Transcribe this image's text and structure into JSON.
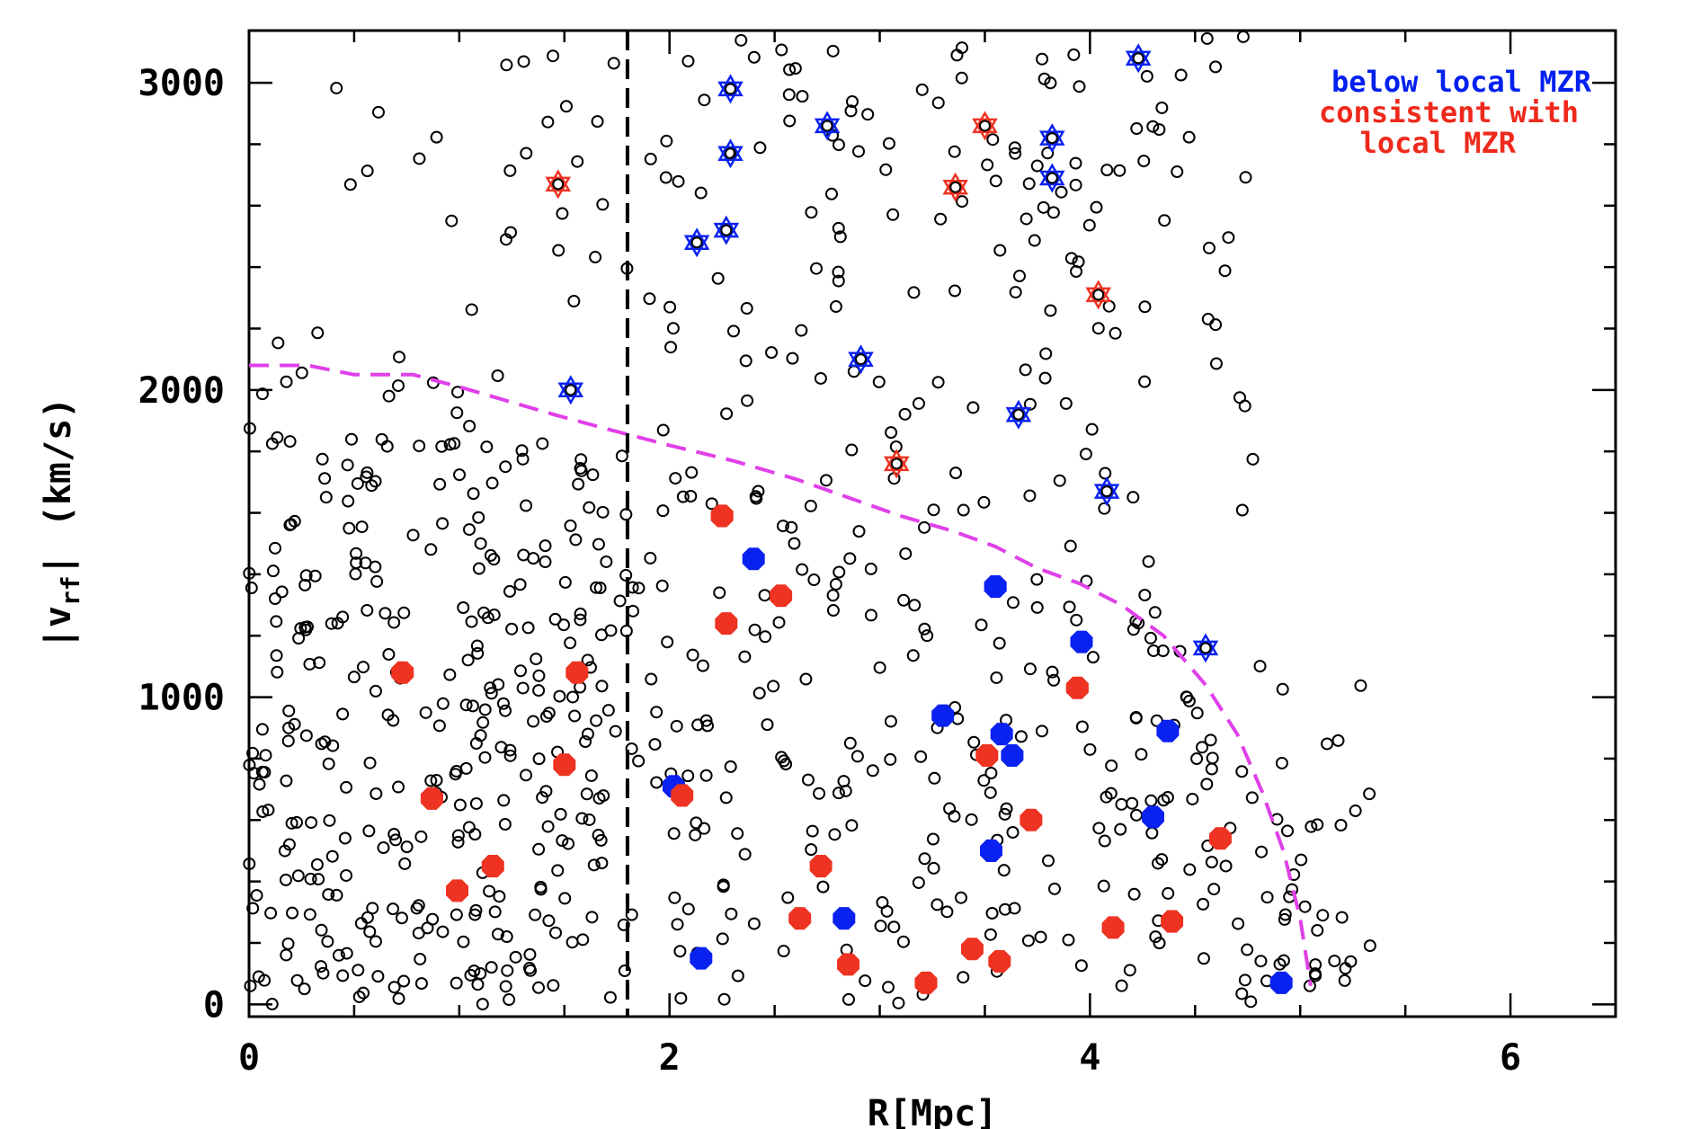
{
  "chart_data": {
    "type": "scatter",
    "xlabel": "R[Mpc]",
    "ylabel": "|v",
    "ylabel_sub": "rf",
    "ylabel_unit": "(km/s)",
    "xlim": [
      0,
      6.5
    ],
    "ylim": [
      -40,
      3170
    ],
    "x_ticks": [
      0,
      2,
      4,
      6
    ],
    "y_ticks": [
      0,
      1000,
      2000,
      3000
    ],
    "x_tick_labels": [
      "0",
      "2",
      "4",
      "6"
    ],
    "y_tick_labels": [
      "0",
      "1000",
      "2000",
      "3000"
    ],
    "grid": false,
    "legend_position": "top-right",
    "legend": [
      {
        "text": "below local MZR",
        "color": "#0020ee"
      },
      {
        "text": "consistent with",
        "color": "#ee2a1c"
      },
      {
        "text": "local MZR",
        "color": "#ee2a1c"
      }
    ],
    "colors": {
      "blue": "#0a22f0",
      "red": "#ee3322",
      "magenta": "#e040e8",
      "black": "#000000"
    },
    "vertical_line_x": 1.8,
    "escape_curve": {
      "name": "",
      "x": [
        0,
        0.28,
        0.5,
        0.78,
        1.0,
        1.2,
        1.45,
        1.72,
        2.0,
        2.3,
        2.6,
        2.85,
        3.1,
        3.35,
        3.55,
        3.75,
        3.95,
        4.15,
        4.35,
        4.55,
        4.7,
        4.82,
        4.92,
        5.0,
        5.05
      ],
      "y": [
        2080,
        2080,
        2050,
        2050,
        2010,
        1970,
        1920,
        1870,
        1820,
        1770,
        1710,
        1650,
        1590,
        1540,
        1490,
        1420,
        1370,
        1300,
        1200,
        1040,
        880,
        690,
        500,
        280,
        60
      ]
    },
    "series": [
      {
        "name": "",
        "marker": "filled-circle",
        "color": "#0a22f0",
        "x": [
          2.4,
          2.02,
          2.15,
          2.83,
          3.3,
          3.58,
          3.63,
          3.53,
          3.55,
          3.96,
          4.37,
          4.3,
          4.91
        ],
        "y": [
          1450,
          710,
          150,
          280,
          940,
          880,
          810,
          500,
          1360,
          1180,
          890,
          610,
          70
        ]
      },
      {
        "name": "",
        "marker": "filled-circle",
        "color": "#ee3322",
        "x": [
          0.73,
          1.56,
          1.5,
          0.87,
          0.99,
          1.16,
          2.25,
          2.27,
          2.53,
          2.06,
          2.72,
          2.62,
          2.85,
          3.22,
          3.44,
          3.57,
          3.51,
          3.72,
          3.94,
          4.11,
          4.39,
          4.62
        ],
        "y": [
          1080,
          1080,
          780,
          670,
          370,
          450,
          1590,
          1240,
          1330,
          680,
          450,
          280,
          130,
          70,
          180,
          140,
          810,
          600,
          1030,
          250,
          270,
          540
        ]
      },
      {
        "name": "",
        "marker": "star",
        "color": "#0a22f0",
        "x": [
          1.53,
          2.29,
          2.29,
          2.13,
          2.27,
          2.75,
          2.91,
          3.66,
          3.82,
          3.82,
          4.08,
          4.23,
          4.55
        ],
        "y": [
          2000,
          2980,
          2770,
          2480,
          2520,
          2860,
          2100,
          1920,
          2820,
          2690,
          1670,
          3080,
          1160
        ]
      },
      {
        "name": "",
        "marker": "star",
        "color": "#ee3322",
        "x": [
          1.47,
          3.08,
          3.36,
          3.5,
          4.04
        ],
        "y": [
          2670,
          1760,
          2660,
          2860,
          2310
        ]
      }
    ],
    "background_points": {
      "name": "",
      "marker": "open-circle",
      "color": "#000000",
      "seed": 7,
      "n_inner": 330,
      "n_outer_low": 260,
      "n_high": 150
    }
  }
}
